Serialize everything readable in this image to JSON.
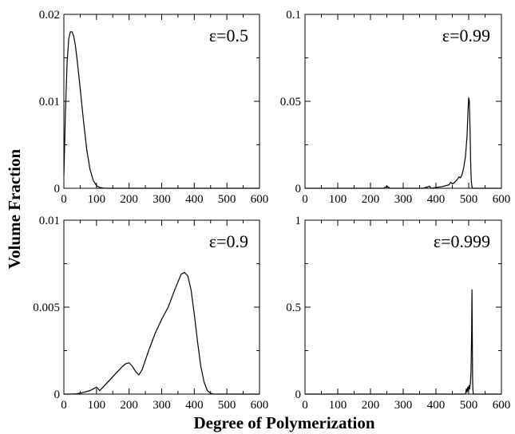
{
  "figure": {
    "ylabel": "Volume Fraction",
    "xlabel": "Degree of Polymerization"
  },
  "chart_data": [
    {
      "type": "line",
      "annotation": "ε=0.5",
      "xlim": [
        0,
        600
      ],
      "ylim": [
        0,
        0.02
      ],
      "xticks": [
        0,
        100,
        200,
        300,
        400,
        500,
        600
      ],
      "yticks": [
        0,
        0.01,
        0.02
      ],
      "ytick_labels": [
        "0",
        "0.01",
        "0.02"
      ],
      "grid": false,
      "series": [
        {
          "x": [
            0,
            5,
            10,
            15,
            20,
            25,
            30,
            35,
            40,
            50,
            60,
            70,
            80,
            90,
            100,
            110,
            120,
            130,
            600
          ],
          "y": [
            0.0015,
            0.009,
            0.0145,
            0.0172,
            0.018,
            0.018,
            0.0175,
            0.0165,
            0.015,
            0.0115,
            0.0078,
            0.0045,
            0.0022,
            0.0009,
            0.0003,
            0.0001,
            3e-05,
            0,
            0
          ]
        }
      ]
    },
    {
      "type": "line",
      "annotation": "ε=0.99",
      "xlim": [
        0,
        600
      ],
      "ylim": [
        0,
        0.1
      ],
      "xticks": [
        0,
        100,
        200,
        300,
        400,
        500,
        600
      ],
      "yticks": [
        0,
        0.05,
        0.1
      ],
      "ytick_labels": [
        "0",
        "0.05",
        "0.1"
      ],
      "grid": false,
      "series": [
        {
          "x": [
            0,
            240,
            250,
            255,
            260,
            300,
            360,
            375,
            380,
            385,
            420,
            440,
            445,
            450,
            455,
            460,
            465,
            470,
            475,
            480,
            485,
            490,
            495,
            498,
            500,
            502,
            504,
            506,
            508,
            510,
            512,
            600
          ],
          "y": [
            0,
            0,
            0.0012,
            0.0006,
            0,
            0,
            0,
            0.0008,
            0.0012,
            0,
            0.001,
            0.002,
            0.0035,
            0.0025,
            0.003,
            0.004,
            0.005,
            0.0065,
            0.006,
            0.008,
            0.012,
            0.018,
            0.03,
            0.045,
            0.052,
            0.05,
            0.035,
            0.015,
            0.004,
            0.001,
            0,
            0
          ]
        }
      ]
    },
    {
      "type": "line",
      "annotation": "ε=0.9",
      "xlim": [
        0,
        600
      ],
      "ylim": [
        0,
        0.01
      ],
      "xticks": [
        0,
        100,
        200,
        300,
        400,
        500,
        600
      ],
      "yticks": [
        0,
        0.005,
        0.01
      ],
      "ytick_labels": [
        "0",
        "0.005",
        "0.01"
      ],
      "grid": false,
      "series": [
        {
          "x": [
            0,
            20,
            40,
            60,
            80,
            90,
            100,
            105,
            110,
            120,
            140,
            160,
            180,
            190,
            200,
            210,
            220,
            230,
            240,
            260,
            280,
            300,
            320,
            340,
            360,
            370,
            380,
            390,
            400,
            410,
            420,
            430,
            440,
            450,
            460,
            600
          ],
          "y": [
            0,
            0,
            2e-05,
            0.0001,
            0.0002,
            0.0003,
            0.0004,
            0.0003,
            0.0002,
            0.0004,
            0.0008,
            0.0012,
            0.0016,
            0.00175,
            0.0018,
            0.0016,
            0.0013,
            0.0011,
            0.0014,
            0.0025,
            0.0035,
            0.0043,
            0.005,
            0.006,
            0.0069,
            0.007,
            0.0068,
            0.006,
            0.0046,
            0.003,
            0.0016,
            0.0007,
            0.0002,
            5e-05,
            0,
            0
          ]
        }
      ]
    },
    {
      "type": "line",
      "annotation": "ε=0.999",
      "xlim": [
        0,
        600
      ],
      "ylim": [
        0,
        1
      ],
      "xticks": [
        0,
        100,
        200,
        300,
        400,
        500,
        600
      ],
      "yticks": [
        0,
        0.5,
        1
      ],
      "ytick_labels": [
        "0",
        "0.5",
        "1"
      ],
      "grid": false,
      "series": [
        {
          "x": [
            0,
            490,
            493,
            495,
            497,
            499,
            501,
            503,
            505,
            507,
            509,
            510,
            511,
            512,
            513,
            514,
            515,
            600
          ],
          "y": [
            0,
            0,
            0.03,
            0.01,
            0.04,
            0.02,
            0.05,
            0.03,
            0.06,
            0.12,
            0.35,
            0.6,
            0.35,
            0.08,
            0.02,
            0.005,
            0,
            0
          ]
        }
      ]
    }
  ]
}
